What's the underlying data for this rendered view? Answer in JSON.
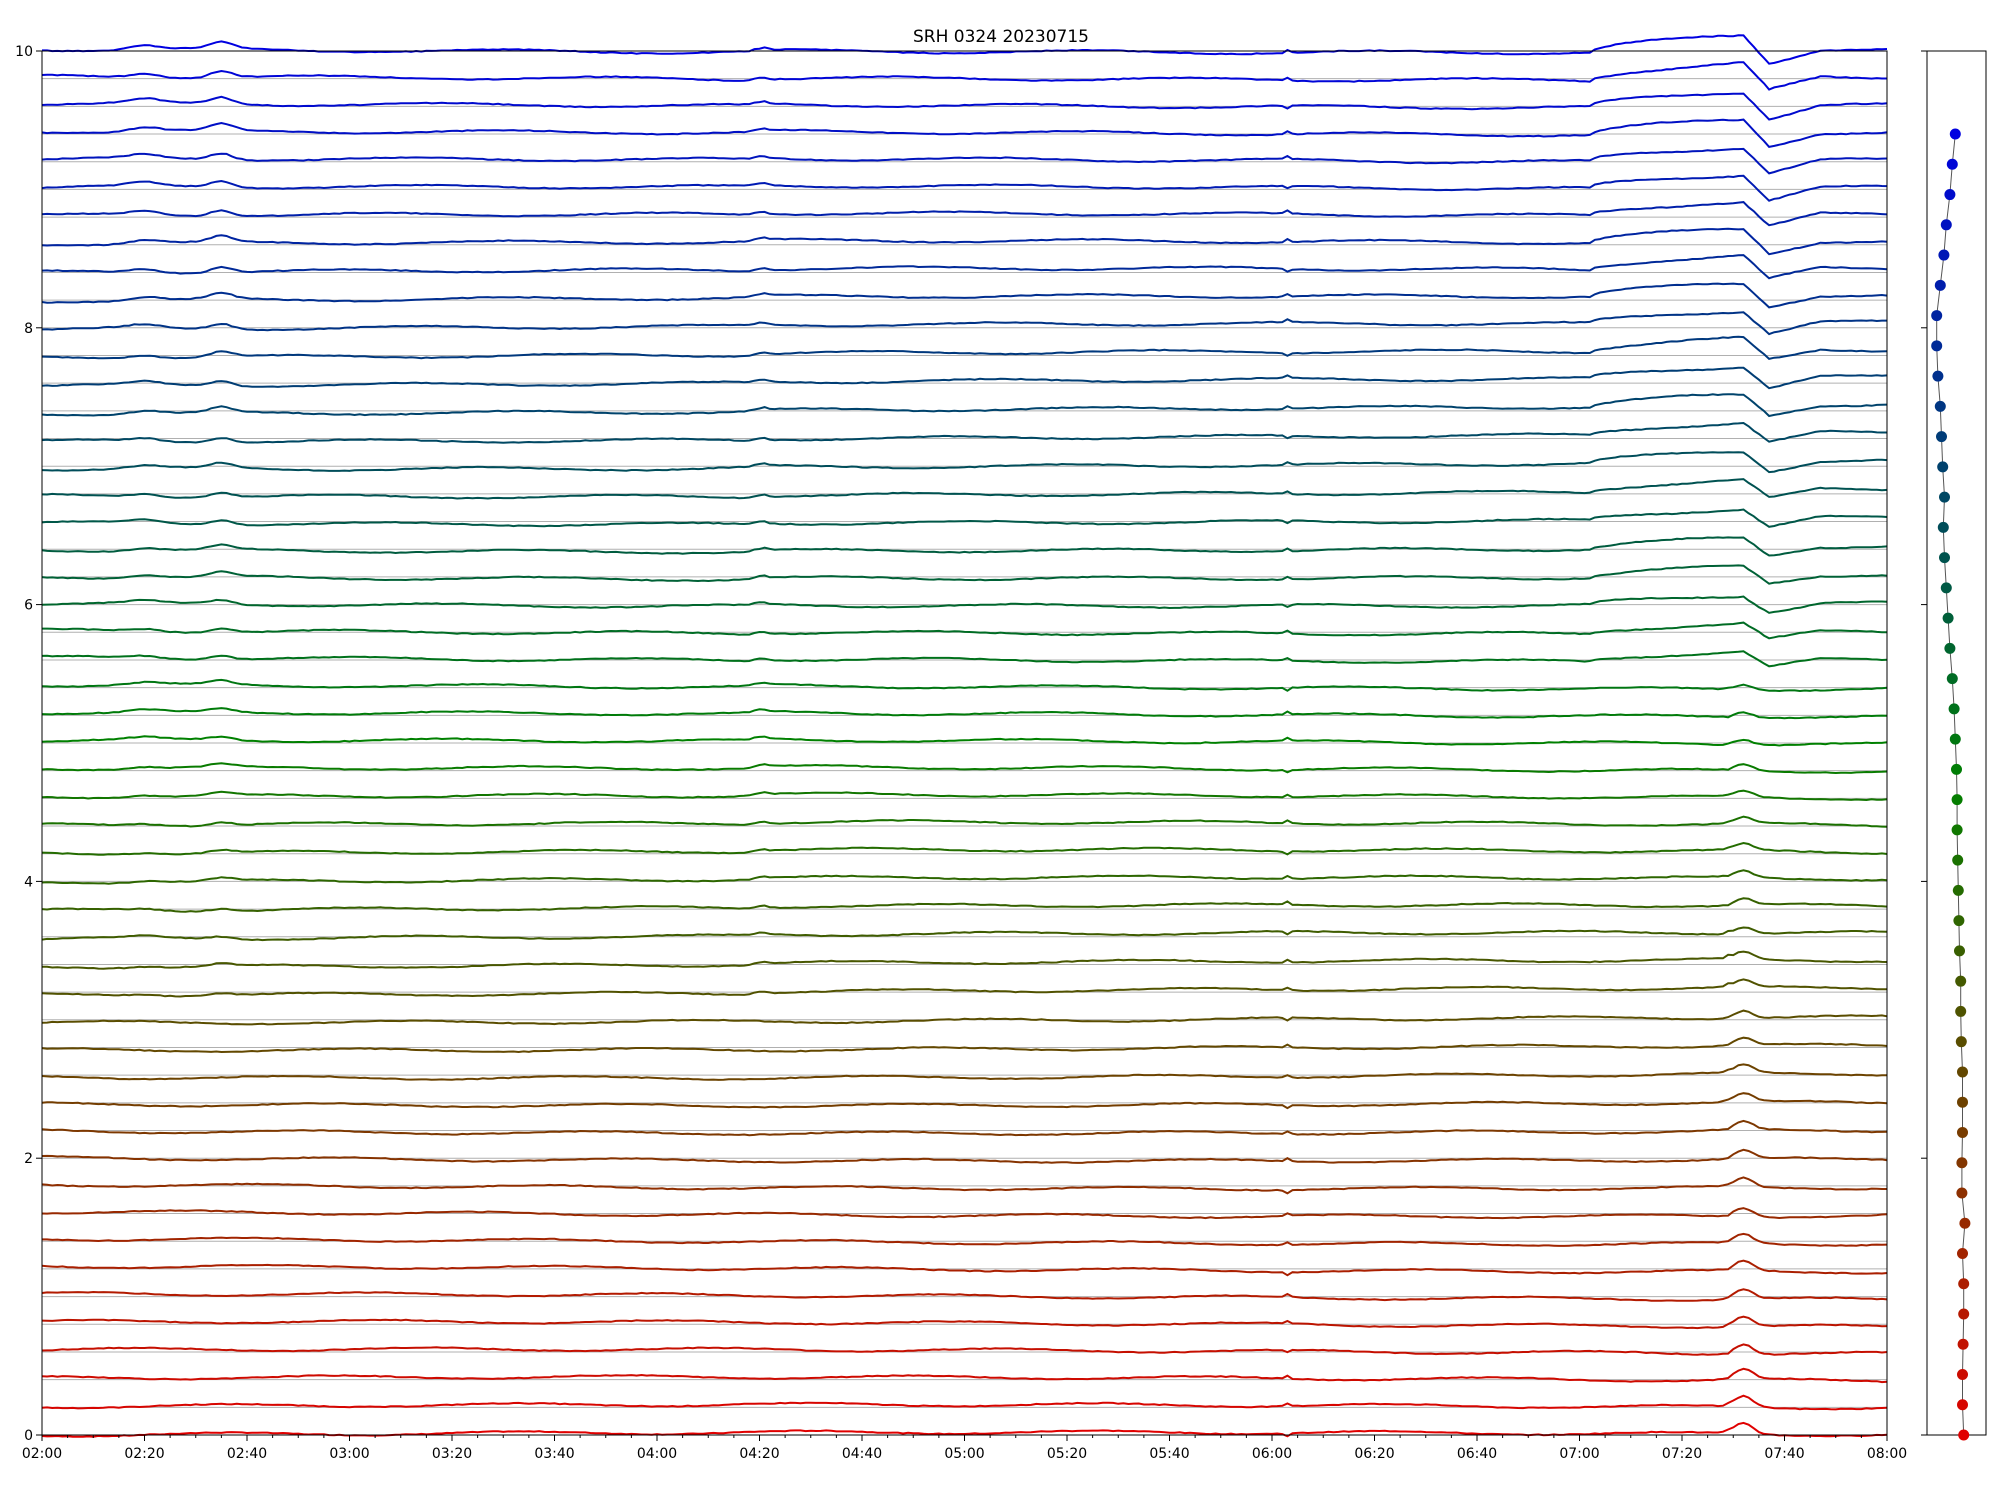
{
  "chart_data": [
    {
      "type": "line",
      "title": "SRH 0324 20230715",
      "xlabel": "",
      "ylabel": "",
      "x_range": [
        "02:00",
        "08:00"
      ],
      "ylim": [
        0,
        10
      ],
      "x_ticks": [
        "02:00",
        "02:20",
        "02:40",
        "03:00",
        "03:20",
        "03:40",
        "04:00",
        "04:20",
        "04:40",
        "05:00",
        "05:20",
        "05:40",
        "06:00",
        "06:20",
        "06:40",
        "07:00",
        "07:20",
        "07:40",
        "08:00"
      ],
      "y_ticks": [
        "0",
        "2",
        "4",
        "6",
        "8",
        "10"
      ],
      "grid": "horizontal reference line at each trace baseline",
      "n_traces": 51,
      "trace_spacing": 0.2,
      "colormap": "red (bottom, 0) to green (middle) to blue (top, 9.4)",
      "start_color": "#e00000",
      "mid_color": "#008000",
      "end_color": "#0000e0",
      "features": {
        "early_bump_times": [
          "02:20",
          "02:35"
        ],
        "step_time": "04:20",
        "spike_time": "06:03",
        "rise_start": "07:02",
        "flare_peak": "07:32",
        "flare_end": "07:37"
      }
    },
    {
      "type": "scatter",
      "title": "",
      "y_ticks": [
        "0",
        "2",
        "4",
        "6",
        "8",
        "10"
      ],
      "ylim": [
        0,
        10
      ],
      "points_y_range": [
        0,
        9.4
      ],
      "n_points": 44,
      "x_offsets": [
        0.02,
        0.0,
        0.0,
        0.01,
        0.02,
        0.02,
        0.0,
        0.04,
        -0.01,
        -0.01,
        0.0,
        0.0,
        0.0,
        -0.02,
        -0.03,
        -0.03,
        -0.05,
        -0.06,
        -0.07,
        -0.08,
        -0.09,
        -0.09,
        -0.1,
        -0.12,
        -0.14,
        -0.17,
        -0.21,
        -0.24,
        -0.27,
        -0.3,
        -0.32,
        -0.3,
        -0.33,
        -0.35,
        -0.37,
        -0.41,
        -0.43,
        -0.43,
        -0.37,
        -0.31,
        -0.27,
        -0.21,
        -0.17,
        -0.12
      ]
    }
  ]
}
